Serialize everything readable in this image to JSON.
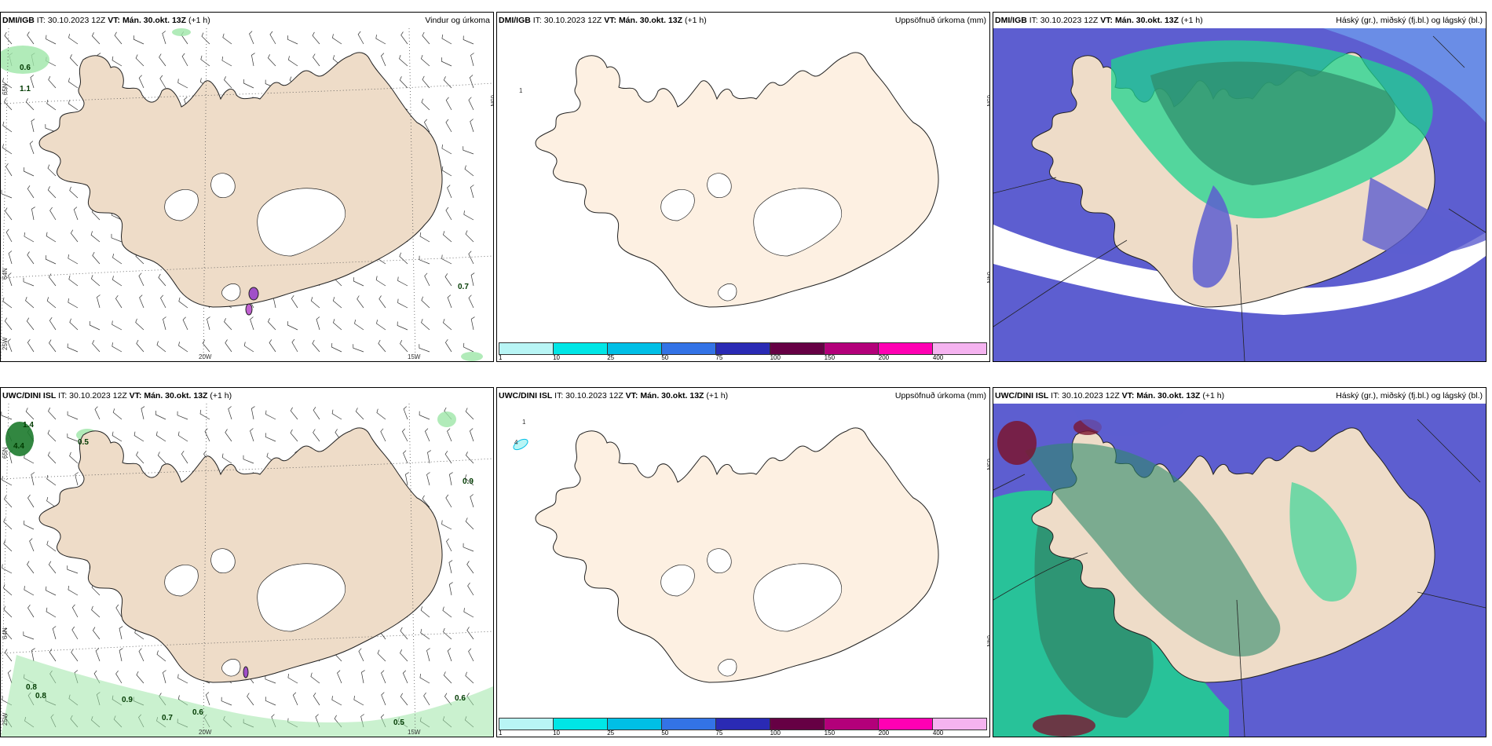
{
  "panels": [
    {
      "id": "p1",
      "model": "DMI/IGB",
      "it": "IT: 30.10.2023 12Z",
      "vt_label": "VT:",
      "vt": "Mán. 30.okt. 13Z",
      "offset": "(+1 h)",
      "product": "Vindur og úrkoma",
      "type": "wind"
    },
    {
      "id": "p2",
      "model": "DMI/IGB",
      "it": "IT: 30.10.2023 12Z",
      "vt_label": "VT:",
      "vt": "Mán. 30.okt. 13Z",
      "offset": "(+1 h)",
      "product": "Uppsöfnuð úrkoma (mm)",
      "type": "accum"
    },
    {
      "id": "p3",
      "model": "DMI/IGB",
      "it": "IT: 30.10.2023 12Z",
      "vt_label": "VT:",
      "vt": "Mán. 30.okt. 13Z",
      "offset": "(+1 h)",
      "product": "Háský (gr.), miðský (fj.bl.) og lágský (bl.)",
      "type": "cloud"
    },
    {
      "id": "p4",
      "model": "UWC/DINI ISL",
      "it": "IT: 30.10.2023 12Z",
      "vt_label": "VT:",
      "vt": "Mán. 30.okt. 13Z",
      "offset": "(+1 h)",
      "product": "",
      "type": "wind"
    },
    {
      "id": "p5",
      "model": "UWC/DINI ISL",
      "it": "IT: 30.10.2023 12Z",
      "vt_label": "VT:",
      "vt": "Mán. 30.okt. 13Z",
      "offset": "(+1 h)",
      "product": "Uppsöfnuð úrkoma (mm)",
      "type": "accum"
    },
    {
      "id": "p6",
      "model": "UWC/DINI ISL",
      "it": "IT: 30.10.2023 12Z",
      "vt_label": "VT:",
      "vt": "Mán. 30.okt. 13Z",
      "offset": "(+1 h)",
      "product": "Háský (gr.), miðský (fj.bl.) og lágský (bl.)",
      "type": "cloud"
    }
  ],
  "axis_labels": {
    "lon_20": "20W",
    "lon_15": "15W",
    "lat_65": "65N",
    "lat_64": "64N",
    "lon_25": "25W"
  },
  "precip_labels_top": [
    "0.6",
    "1.1",
    "0.7"
  ],
  "precip_labels_bottom": [
    "1.4",
    "4.4",
    "0.5",
    "0.9",
    "0.8",
    "0.8",
    "0.9",
    "0.7",
    "0.6",
    "0.6",
    "0.5"
  ],
  "accum_labels_top": [
    "1"
  ],
  "accum_labels_bottom": [
    "1",
    "4"
  ],
  "colorbar": {
    "ticks": [
      "1",
      "10",
      "25",
      "50",
      "75",
      "100",
      "150",
      "200",
      "400"
    ],
    "colors": [
      "#b8f5f5",
      "#00e6e6",
      "#00bfe6",
      "#3373e6",
      "#2a2ab4",
      "#660044",
      "#b3007a",
      "#ff00b3",
      "#f5b3f0"
    ]
  },
  "colors": {
    "land": "#eedcc8",
    "land_accum": "#fdf0e2",
    "glacier": "#ffffff",
    "precip": "#9ee6a8",
    "cloud_high": "#2f8a6a",
    "cloud_mid": "#1fd48f",
    "cloud_low": "#5d5ed0"
  }
}
